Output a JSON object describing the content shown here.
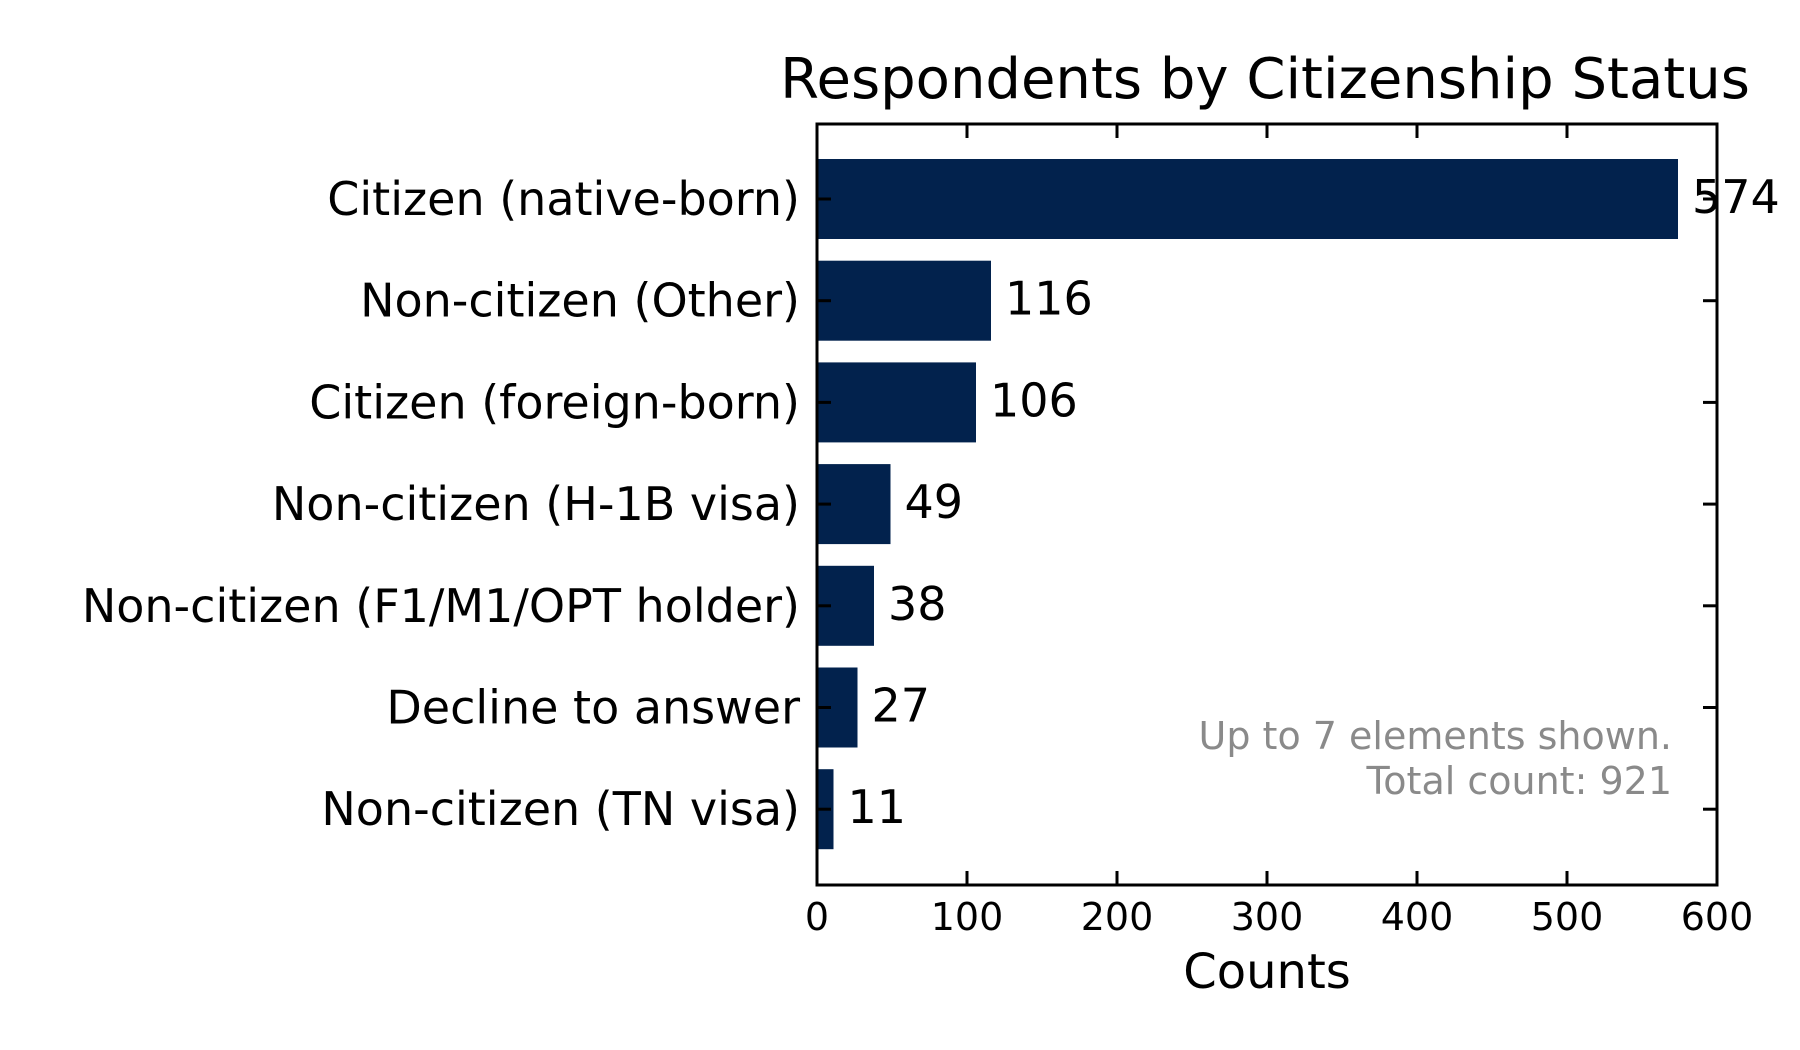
{
  "chart_data": {
    "type": "bar",
    "orientation": "horizontal",
    "title": "Respondents by Citizenship Status",
    "xlabel": "Counts",
    "ylabel": "",
    "categories": [
      "Citizen (native-born)",
      "Non-citizen (Other)",
      "Citizen (foreign-born)",
      "Non-citizen (H-1B visa)",
      "Non-citizen (F1/M1/OPT holder)",
      "Decline to answer",
      "Non-citizen (TN visa)"
    ],
    "values": [
      574,
      116,
      106,
      49,
      38,
      27,
      11
    ],
    "value_labels": [
      "574",
      "116",
      "106",
      "49",
      "38",
      "27",
      "11"
    ],
    "xlim": [
      0,
      600
    ],
    "x_ticks": [
      0,
      100,
      200,
      300,
      400,
      500,
      600
    ],
    "x_tick_labels": [
      "0",
      "100",
      "200",
      "300",
      "400",
      "500",
      "600"
    ],
    "grid": false,
    "bar_color": "#02224d",
    "annotation": {
      "lines": [
        "Up to 7 elements shown.",
        "Total count: 921"
      ],
      "color": "#8a8a8a",
      "placement": "bottom-right"
    }
  }
}
